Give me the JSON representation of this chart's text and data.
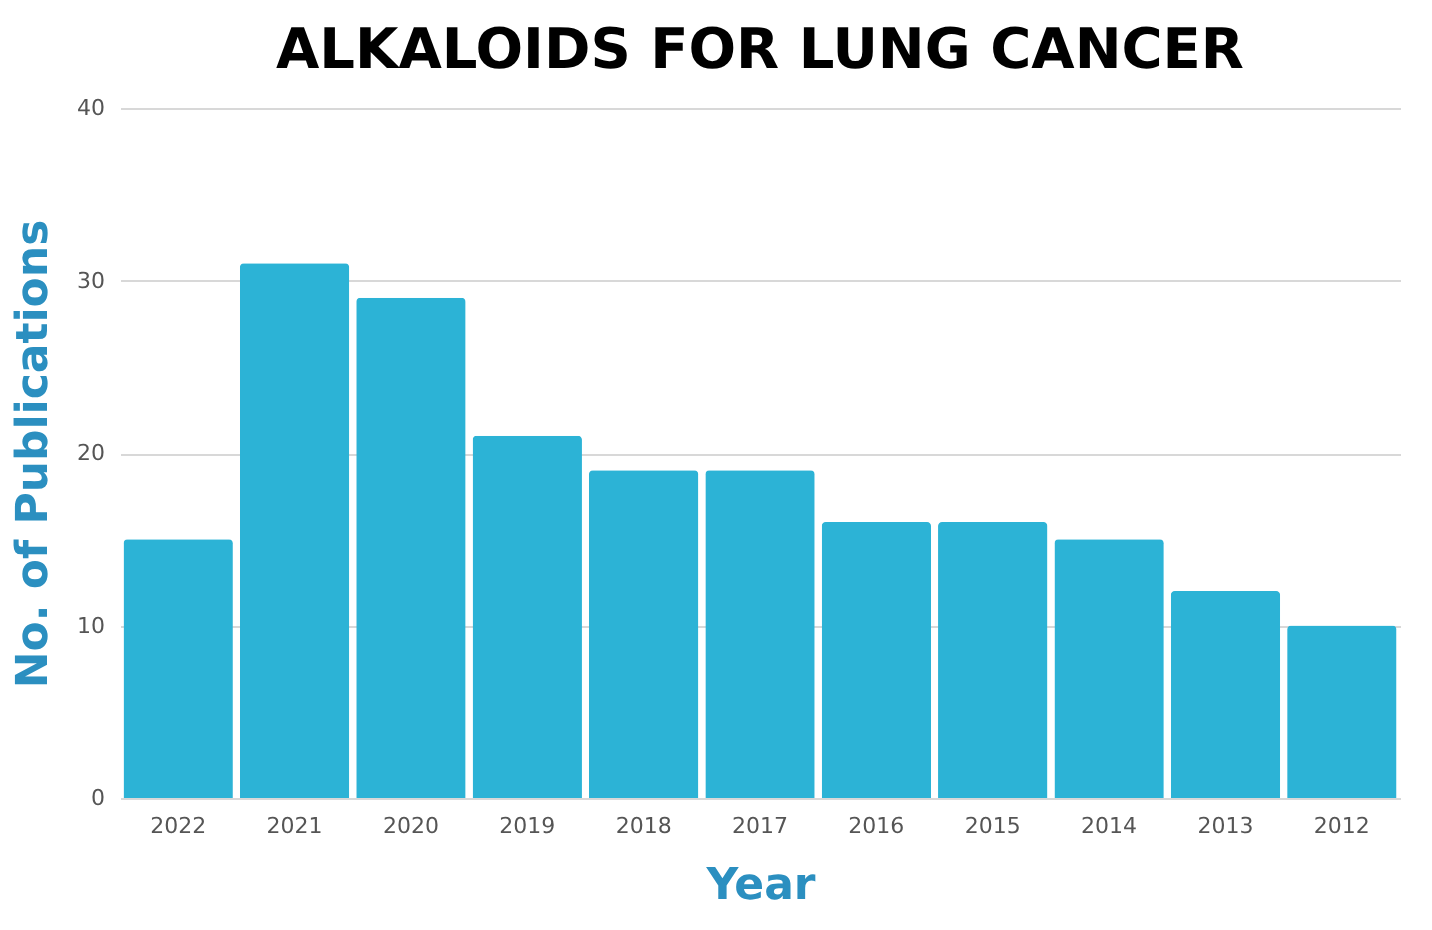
{
  "chart_data": {
    "type": "bar",
    "title": "ALKALOIDS FOR LUNG CANCER",
    "xlabel": "Year",
    "ylabel": "No. of Publications",
    "categories": [
      "2022",
      "2021",
      "2020",
      "2019",
      "2018",
      "2017",
      "2016",
      "2015",
      "2014",
      "2013",
      "2012"
    ],
    "values": [
      15,
      31,
      29,
      21,
      19,
      19,
      16,
      16,
      15,
      12,
      10
    ],
    "color": "#2cb3d6",
    "ylim": [
      0,
      40
    ],
    "yticks": [
      0,
      10,
      20,
      30,
      40
    ],
    "grid": "y"
  }
}
